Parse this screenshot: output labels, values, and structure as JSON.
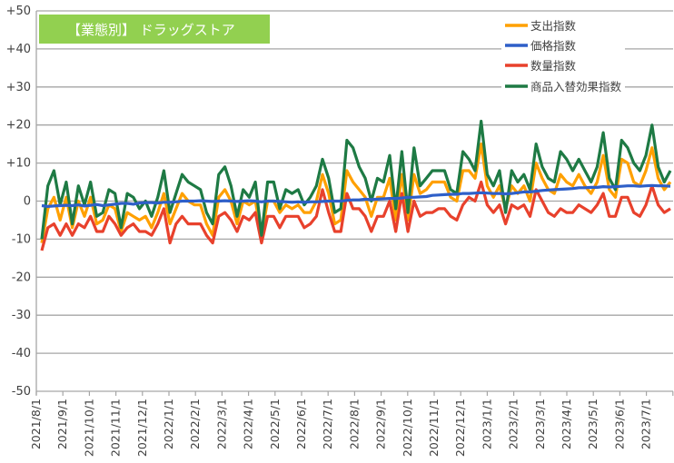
{
  "chart_data": {
    "type": "line",
    "title": "【業態別】 ドラッグストア",
    "xlabel": "",
    "ylabel": "",
    "ylim": [
      -50,
      50
    ],
    "yticks": [
      50,
      40,
      30,
      20,
      10,
      0,
      -10,
      -20,
      -30,
      -40,
      -50
    ],
    "ytick_labels": [
      "+50",
      "+40",
      "+30",
      "+20",
      "+10",
      "0",
      "-10",
      "-20",
      "-30",
      "-40",
      "-50"
    ],
    "x_tick_labels": [
      "2021/8/1",
      "2021/9/1",
      "2021/10/1",
      "2021/11/1",
      "2021/12/1",
      "2022/1/1",
      "2022/2/1",
      "2022/3/1",
      "2022/4/1",
      "2022/5/1",
      "2022/6/1",
      "2022/7/1",
      "2022/8/1",
      "2022/9/1",
      "2022/10/1",
      "2022/11/1",
      "2022/12/1",
      "2023/1/1",
      "2023/2/1",
      "2023/3/1",
      "2023/4/1",
      "2023/5/1",
      "2023/6/1",
      "2023/7/1"
    ],
    "x_frequency": "weekly",
    "grid": true,
    "legend_position": "top-right",
    "series": [
      {
        "name": "支出指数",
        "color": "#ffa000",
        "values": [
          -11,
          -2,
          1,
          -5,
          1,
          -7,
          0,
          -4,
          1,
          -6,
          -5,
          -1,
          -2,
          -8,
          -3,
          -4,
          -5,
          -4,
          -7,
          -3,
          2,
          -6,
          -2,
          2,
          0,
          -1,
          -1,
          -6,
          -9,
          1,
          3,
          0,
          -6,
          0,
          -1,
          0,
          -9,
          0,
          0,
          -3,
          -1,
          -2,
          -1,
          -3,
          -3,
          0,
          7,
          2,
          -6,
          -5,
          8,
          5,
          3,
          1,
          -4,
          1,
          1,
          6,
          -5,
          7,
          -5,
          7,
          2,
          3,
          5,
          5,
          5,
          1,
          0,
          8,
          8,
          6,
          15,
          4,
          1,
          4,
          -2,
          4,
          2,
          4,
          0,
          10,
          6,
          3,
          2,
          7,
          5,
          4,
          7,
          4,
          2,
          5,
          12,
          3,
          1,
          11,
          10,
          5,
          4,
          8,
          14,
          6,
          3,
          5
        ]
      },
      {
        "name": "価格指数",
        "color": "#2e5fc8",
        "values": [
          -1.2,
          -1.4,
          -1.3,
          -1.2,
          -1.1,
          -1.2,
          -1.0,
          -1.3,
          -1.1,
          -0.9,
          -1.2,
          -1.0,
          -0.8,
          -0.6,
          -0.6,
          -0.8,
          -0.5,
          -0.4,
          -0.4,
          -0.5,
          -0.3,
          -0.3,
          -0.2,
          0,
          0,
          0,
          0.1,
          0,
          -0.1,
          0,
          0.1,
          0,
          -0.1,
          0,
          0.1,
          0,
          -0.2,
          0,
          0,
          -0.1,
          -0.2,
          -0.3,
          -0.2,
          -0.3,
          -0.2,
          -0.2,
          -0.1,
          0,
          0,
          0,
          0.2,
          0.3,
          0.3,
          0.5,
          0.4,
          0.5,
          0.6,
          0.7,
          0.7,
          0.8,
          1,
          1,
          1.1,
          1.2,
          1.5,
          1.6,
          1.7,
          1.8,
          1.8,
          2,
          2,
          2.1,
          2.2,
          2.1,
          2,
          2,
          1.9,
          2,
          2.2,
          2.4,
          2.4,
          2.6,
          2.8,
          2.9,
          3,
          3.1,
          3.2,
          3.3,
          3.5,
          3.5,
          3.6,
          3.6,
          3.8,
          3.7,
          3.8,
          3.9,
          4,
          4,
          3.9,
          4,
          4.1,
          4,
          4,
          3.9
        ]
      },
      {
        "name": "数量指数",
        "color": "#e8412c",
        "values": [
          -13,
          -7,
          -6,
          -9,
          -6,
          -9,
          -6,
          -7,
          -4,
          -8,
          -8,
          -4,
          -6,
          -9,
          -7,
          -6,
          -8,
          -8,
          -9,
          -6,
          -2,
          -11,
          -6,
          -4,
          -6,
          -6,
          -6,
          -9,
          -11,
          -4,
          -3,
          -5,
          -8,
          -4,
          -5,
          -3,
          -11,
          -4,
          -4,
          -7,
          -4,
          -4,
          -4,
          -7,
          -6,
          -4,
          3,
          -3,
          -8,
          -8,
          2,
          -2,
          -2,
          -4,
          -8,
          -4,
          -4,
          0,
          -8,
          2,
          -8,
          0,
          -4,
          -3,
          -3,
          -2,
          -2,
          -4,
          -5,
          -1,
          1,
          0,
          5,
          -1,
          -3,
          -1,
          -6,
          -1,
          -2,
          -1,
          -4,
          3,
          0,
          -3,
          -4,
          -2,
          -3,
          -3,
          -1,
          -2,
          -3,
          -1,
          2,
          -4,
          -4,
          1,
          1,
          -3,
          -4,
          -1,
          4,
          -1,
          -3,
          -2
        ]
      },
      {
        "name": "商品入替効果指数",
        "color": "#1e7a44",
        "values": [
          -10,
          4,
          8,
          -1,
          5,
          -6,
          4,
          -1,
          5,
          -4,
          -3,
          3,
          2,
          -7,
          2,
          1,
          -2,
          0,
          -4,
          1,
          8,
          -3,
          2,
          7,
          5,
          4,
          3,
          -3,
          -6,
          7,
          9,
          4,
          -4,
          3,
          1,
          5,
          -9,
          5,
          5,
          -2,
          3,
          2,
          3,
          -1,
          1,
          4,
          11,
          6,
          -3,
          -2,
          16,
          14,
          9,
          6,
          0,
          6,
          5,
          12,
          -2,
          13,
          -3,
          14,
          4,
          6,
          8,
          8,
          8,
          3,
          2,
          13,
          11,
          8,
          21,
          7,
          4,
          8,
          -3,
          8,
          5,
          7,
          3,
          15,
          9,
          6,
          5,
          13,
          11,
          8,
          11,
          8,
          5,
          9,
          18,
          6,
          3,
          16,
          14,
          10,
          8,
          12,
          20,
          9,
          5,
          8
        ]
      }
    ]
  }
}
